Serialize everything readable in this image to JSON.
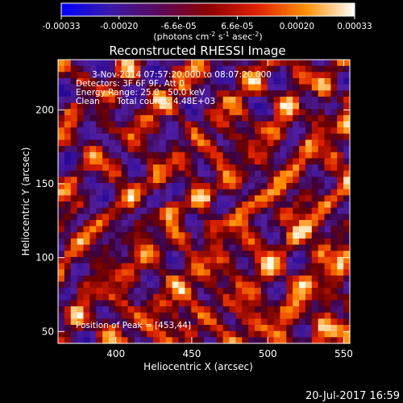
{
  "colorbar": {
    "ticks": [
      "-0.00033",
      "-0.00020",
      "-6.6e-05",
      "6.6e-05",
      "0.00020",
      "0.00033"
    ],
    "tick_values": [
      -0.00033,
      -0.0002,
      -6.6e-05,
      6.6e-05,
      0.0002,
      0.00033
    ],
    "range": [
      -0.00033,
      0.00033
    ],
    "unit_main": "(photons cm",
    "unit_sup1": "-2",
    "unit_mid": " s",
    "unit_sup2": "-1",
    "unit_end": " asec",
    "unit_sup3": "-2",
    "unit_close": ")",
    "stops": [
      "#0000ff",
      "#3a1aa8",
      "#5a0a5a",
      "#8a0000",
      "#e02000",
      "#ff9000",
      "#ffffff"
    ]
  },
  "chart_data": {
    "type": "heatmap",
    "title": "Reconstructed RHESSI Image",
    "xlabel": "Heliocentric X (arcsec)",
    "ylabel": "Heliocentric Y (arcsec)",
    "xlim": [
      362,
      554
    ],
    "ylim": [
      42,
      234
    ],
    "xticks": [
      400,
      450,
      500,
      550
    ],
    "yticks": [
      50,
      100,
      150,
      200
    ],
    "xtick_labels": [
      "400",
      "450",
      "500",
      "550"
    ],
    "ytick_labels": [
      "50",
      "100",
      "150",
      "200"
    ],
    "annotations": {
      "time_range": "3-Nov-2014 07:57:20.000 to 08:07:20.000",
      "detectors": "Detectors: 3F 6F 9F, Att 0",
      "energy": "Energy Range: 25.0 - 50.0 keV",
      "clean": "Clean",
      "counts": "Total counts: 4.48E+03",
      "peak": "Position of Peak = [453,44]"
    },
    "peak": [
      453,
      44
    ]
  },
  "footer": {
    "timestamp": "20-Jul-2017 16:59"
  }
}
